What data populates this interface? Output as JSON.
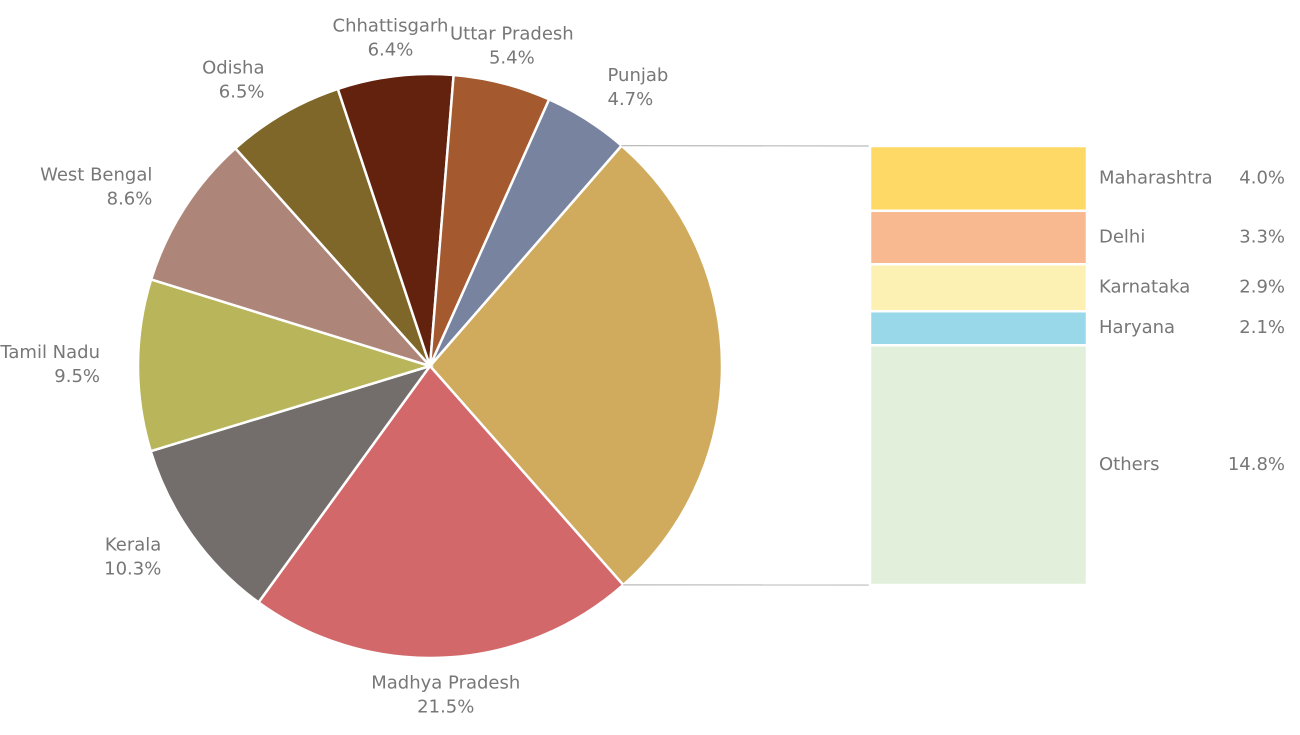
{
  "chart_data": {
    "type": "pie-of-bar",
    "pie": {
      "categories": [
        "Madhya Pradesh",
        "Kerala",
        "Tamil Nadu",
        "West Bengal",
        "Odisha",
        "Chhattisgarh",
        "Uttar Pradesh",
        "Punjab"
      ],
      "values": [
        21.5,
        10.3,
        9.5,
        8.6,
        6.5,
        6.4,
        5.4,
        4.7
      ],
      "value_labels": [
        "21.5%",
        "10.3%",
        "9.5%",
        "8.6%",
        "6.5%",
        "6.4%",
        "5.4%",
        "4.7%"
      ],
      "colors": [
        "#d3686b",
        "#736e6b",
        "#b9b55b",
        "#ae8679",
        "#7f6629",
        "#62220e",
        "#a4592f",
        "#78849f"
      ],
      "other_color": "#d0ab5e"
    },
    "bar": {
      "categories": [
        "Maharashtra",
        "Delhi",
        "Karnataka",
        "Haryana",
        "Others"
      ],
      "values": [
        4.0,
        3.3,
        2.9,
        2.1,
        14.8
      ],
      "value_labels": [
        "4.0%",
        "3.3%",
        "2.9%",
        "2.1%",
        "14.8%"
      ],
      "colors": [
        "#ffd966",
        "#f8b990",
        "#fdf0b3",
        "#99d8e8",
        "#e2efda"
      ]
    }
  }
}
